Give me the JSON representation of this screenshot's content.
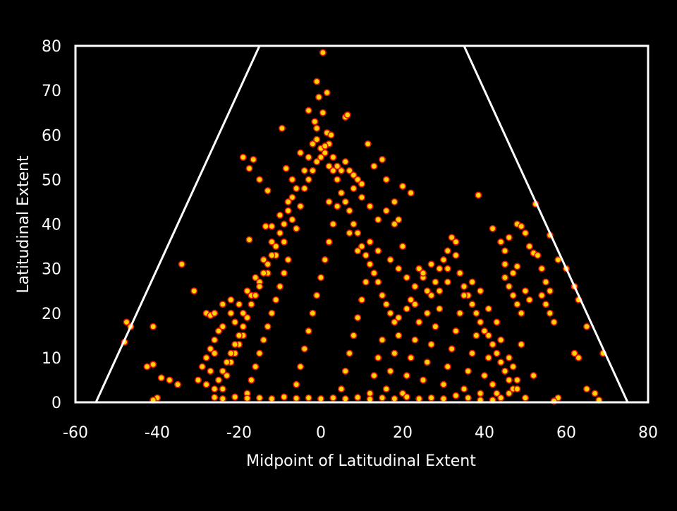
{
  "chart_data": {
    "type": "scatter",
    "title": "",
    "xlabel": "Midpoint of Latitudinal Extent",
    "ylabel": "Latitudinal Extent",
    "xlim": [
      -60,
      80
    ],
    "ylim": [
      0,
      80
    ],
    "xticks": [
      -60,
      -40,
      -20,
      0,
      20,
      40,
      60,
      80
    ],
    "yticks": [
      0,
      10,
      20,
      30,
      40,
      50,
      60,
      70,
      80
    ],
    "grid": false,
    "legend": "none",
    "colors": {
      "background": "#000000",
      "axis": "#ffffff",
      "marker_fill": "#ffd400",
      "marker_edge": "#e0140a",
      "dense_core": "#e8120c"
    },
    "boundary_lines": [
      {
        "x": [
          -55,
          -15
        ],
        "y": [
          0,
          80
        ]
      },
      {
        "x": [
          35,
          75
        ],
        "y": [
          80,
          0
        ]
      }
    ],
    "points": [
      [
        0.5,
        78.5
      ],
      [
        -1,
        72
      ],
      [
        1.5,
        69.5
      ],
      [
        -0.5,
        68.5
      ],
      [
        0.5,
        65
      ],
      [
        -3,
        65.5
      ],
      [
        -1.5,
        63
      ],
      [
        -1,
        61.5
      ],
      [
        1.5,
        60.5
      ],
      [
        2.5,
        60
      ],
      [
        6,
        64
      ],
      [
        6.5,
        64.5
      ],
      [
        -9.5,
        61.5
      ],
      [
        -19,
        55
      ],
      [
        -16.5,
        54.5
      ],
      [
        -17.5,
        52.5
      ],
      [
        -15,
        50
      ],
      [
        -13,
        47.5
      ],
      [
        -8.5,
        52.5
      ],
      [
        11.5,
        58
      ],
      [
        13,
        53
      ],
      [
        15,
        54.5
      ],
      [
        16,
        50
      ],
      [
        20,
        48.5
      ],
      [
        22,
        47
      ],
      [
        38.5,
        46.5
      ],
      [
        52.5,
        44.5
      ],
      [
        -34,
        31
      ],
      [
        -17.5,
        36.5
      ],
      [
        -13.5,
        39.5
      ],
      [
        -12,
        39.5
      ],
      [
        -31,
        25
      ],
      [
        -28,
        20
      ],
      [
        -27,
        19.5
      ],
      [
        -47.5,
        18
      ],
      [
        -46.5,
        17
      ],
      [
        -41,
        17
      ],
      [
        -48,
        13.5
      ],
      [
        -41,
        8.5
      ],
      [
        -42.5,
        8
      ],
      [
        -39,
        5.5
      ],
      [
        -37,
        5
      ],
      [
        -35,
        4
      ],
      [
        -40,
        1
      ],
      [
        -41,
        0.5
      ],
      [
        -26,
        20
      ],
      [
        -24,
        22
      ],
      [
        -22,
        23
      ],
      [
        -21,
        18
      ],
      [
        -19,
        20
      ],
      [
        -17,
        24
      ],
      [
        -15,
        27
      ],
      [
        -13,
        29
      ],
      [
        -11,
        33
      ],
      [
        -9,
        36
      ],
      [
        -7,
        41
      ],
      [
        -5,
        44
      ],
      [
        -4,
        48
      ],
      [
        -3,
        50
      ],
      [
        -2,
        52
      ],
      [
        -1,
        54
      ],
      [
        0,
        55
      ],
      [
        1,
        56
      ],
      [
        2,
        53
      ],
      [
        3,
        52
      ],
      [
        4,
        50
      ],
      [
        5,
        47
      ],
      [
        6,
        45
      ],
      [
        7,
        43
      ],
      [
        8,
        40
      ],
      [
        9,
        38
      ],
      [
        10,
        35
      ],
      [
        11,
        33
      ],
      [
        12,
        31
      ],
      [
        13,
        29
      ],
      [
        14,
        27
      ],
      [
        15,
        24
      ],
      [
        16,
        22
      ],
      [
        17,
        20
      ],
      [
        18,
        18
      ],
      [
        19,
        19
      ],
      [
        21,
        21
      ],
      [
        22,
        23
      ],
      [
        23,
        26
      ],
      [
        24,
        30
      ],
      [
        25,
        28
      ],
      [
        26,
        25
      ],
      [
        27,
        24
      ],
      [
        28,
        27
      ],
      [
        29,
        30
      ],
      [
        30,
        32
      ],
      [
        31,
        34
      ],
      [
        32,
        37
      ],
      [
        33,
        33
      ],
      [
        34,
        29
      ],
      [
        35,
        26
      ],
      [
        36,
        24
      ],
      [
        37,
        22
      ],
      [
        38,
        20
      ],
      [
        39,
        18
      ],
      [
        40,
        16
      ],
      [
        41,
        15
      ],
      [
        42,
        13
      ],
      [
        43,
        11
      ],
      [
        44,
        9
      ],
      [
        45,
        7
      ],
      [
        46,
        5
      ],
      [
        47,
        3
      ],
      [
        42,
        39
      ],
      [
        44,
        36
      ],
      [
        45,
        34
      ],
      [
        46,
        37
      ],
      [
        48,
        40
      ],
      [
        49,
        39.5
      ],
      [
        50,
        38
      ],
      [
        51,
        35
      ],
      [
        52,
        33.5
      ],
      [
        53,
        33
      ],
      [
        54,
        30
      ],
      [
        55,
        27
      ],
      [
        56,
        25
      ],
      [
        54,
        24
      ],
      [
        55,
        22
      ],
      [
        56,
        20
      ],
      [
        57,
        18
      ],
      [
        56,
        37.5
      ],
      [
        58,
        32
      ],
      [
        60,
        30
      ],
      [
        62,
        26
      ],
      [
        63,
        23
      ],
      [
        65,
        17
      ],
      [
        62,
        11
      ],
      [
        63,
        10
      ],
      [
        69,
        11
      ],
      [
        65,
        3
      ],
      [
        67,
        2
      ],
      [
        68,
        0.5
      ],
      [
        45,
        28
      ],
      [
        46,
        26
      ],
      [
        47,
        24
      ],
      [
        48,
        22
      ],
      [
        49,
        20
      ],
      [
        45,
        31
      ],
      [
        47,
        29
      ],
      [
        48,
        30.5
      ],
      [
        50,
        25
      ],
      [
        51,
        23
      ],
      [
        49,
        13
      ],
      [
        52,
        6
      ],
      [
        48,
        3
      ],
      [
        50,
        1
      ],
      [
        58,
        1
      ],
      [
        57,
        0.3
      ],
      [
        -30,
        5
      ],
      [
        -29,
        8
      ],
      [
        -28,
        10
      ],
      [
        -27,
        12
      ],
      [
        -26,
        14
      ],
      [
        -25,
        16
      ],
      [
        -24,
        3
      ],
      [
        -23,
        6
      ],
      [
        -22,
        9
      ],
      [
        -21,
        11
      ],
      [
        -20,
        13
      ],
      [
        -19,
        15
      ],
      [
        -18,
        2
      ],
      [
        -17,
        5
      ],
      [
        -16,
        8
      ],
      [
        -15,
        11
      ],
      [
        -14,
        14
      ],
      [
        -13,
        17
      ],
      [
        -12,
        20
      ],
      [
        -11,
        23
      ],
      [
        -10,
        26
      ],
      [
        -9,
        29
      ],
      [
        -8,
        32
      ],
      [
        -6,
        4
      ],
      [
        -5,
        8
      ],
      [
        -4,
        12
      ],
      [
        -3,
        16
      ],
      [
        -2,
        20
      ],
      [
        -1,
        24
      ],
      [
        0,
        28
      ],
      [
        1,
        32
      ],
      [
        2,
        36
      ],
      [
        3,
        40
      ],
      [
        4,
        44
      ],
      [
        5,
        3
      ],
      [
        6,
        7
      ],
      [
        7,
        11
      ],
      [
        8,
        15
      ],
      [
        9,
        19
      ],
      [
        10,
        23
      ],
      [
        11,
        27
      ],
      [
        12,
        2
      ],
      [
        13,
        6
      ],
      [
        14,
        10
      ],
      [
        15,
        14
      ],
      [
        16,
        3
      ],
      [
        17,
        7
      ],
      [
        18,
        11
      ],
      [
        19,
        15
      ],
      [
        20,
        2
      ],
      [
        21,
        6
      ],
      [
        22,
        10
      ],
      [
        23,
        14
      ],
      [
        24,
        18
      ],
      [
        25,
        5
      ],
      [
        26,
        9
      ],
      [
        27,
        13
      ],
      [
        28,
        17
      ],
      [
        29,
        21
      ],
      [
        30,
        4
      ],
      [
        31,
        8
      ],
      [
        32,
        12
      ],
      [
        33,
        16
      ],
      [
        34,
        20
      ],
      [
        35,
        3
      ],
      [
        36,
        7
      ],
      [
        37,
        11
      ],
      [
        38,
        15
      ],
      [
        39,
        2
      ],
      [
        40,
        6
      ],
      [
        41,
        10
      ],
      [
        42,
        4
      ],
      [
        43,
        2
      ],
      [
        -6,
        39
      ],
      [
        -8,
        45
      ],
      [
        -10,
        42
      ],
      [
        -7,
        50
      ],
      [
        -5,
        56
      ],
      [
        2,
        45
      ],
      [
        5,
        52
      ],
      [
        8,
        48
      ],
      [
        10,
        46
      ],
      [
        12,
        44
      ],
      [
        14,
        41
      ],
      [
        16,
        43
      ],
      [
        18,
        45
      ],
      [
        7,
        38
      ],
      [
        9,
        34
      ],
      [
        12,
        36
      ],
      [
        14,
        34
      ],
      [
        17,
        32
      ],
      [
        19,
        30
      ],
      [
        21,
        28
      ],
      [
        20,
        35
      ],
      [
        19,
        41
      ],
      [
        18,
        40
      ],
      [
        -12,
        36
      ],
      [
        -14,
        32
      ],
      [
        -16,
        28
      ],
      [
        -18,
        25
      ],
      [
        -20,
        22
      ],
      [
        -22,
        20
      ],
      [
        -24,
        17
      ],
      [
        -26,
        11
      ],
      [
        -27,
        7
      ],
      [
        -28,
        4
      ],
      [
        33,
        36
      ],
      [
        31,
        30
      ],
      [
        27,
        31
      ],
      [
        25,
        29
      ],
      [
        23,
        22
      ],
      [
        26,
        20
      ],
      [
        29,
        25
      ],
      [
        31,
        27
      ],
      [
        35,
        24
      ],
      [
        37,
        27
      ],
      [
        39,
        25
      ],
      [
        41,
        21
      ],
      [
        43,
        18
      ],
      [
        44,
        14
      ],
      [
        46,
        10
      ],
      [
        47,
        8
      ],
      [
        48,
        5
      ],
      [
        46,
        2
      ],
      [
        44,
        1
      ],
      [
        42,
        0.5
      ],
      [
        39,
        0.5
      ],
      [
        36,
        1
      ],
      [
        33,
        1.5
      ],
      [
        30,
        0.8
      ],
      [
        27,
        1
      ],
      [
        24,
        0.8
      ],
      [
        21,
        1.2
      ],
      [
        18,
        0.8
      ],
      [
        15,
        1
      ],
      [
        12,
        0.7
      ],
      [
        9,
        1.1
      ],
      [
        6,
        0.8
      ],
      [
        3,
        1
      ],
      [
        0,
        0.8
      ],
      [
        -3,
        1
      ],
      [
        -6,
        0.9
      ],
      [
        -9,
        1.2
      ],
      [
        -12,
        0.8
      ],
      [
        -15,
        1
      ],
      [
        -18,
        0.9
      ],
      [
        -21,
        1.2
      ],
      [
        -24,
        0.8
      ],
      [
        -26,
        1.1
      ],
      [
        -2,
        58
      ],
      [
        0,
        57
      ],
      [
        2,
        58
      ],
      [
        -1,
        59
      ],
      [
        1,
        57.5
      ],
      [
        -3,
        55
      ],
      [
        3,
        55
      ],
      [
        4,
        53
      ],
      [
        -4,
        52
      ],
      [
        6,
        54
      ],
      [
        7,
        52
      ],
      [
        8,
        51
      ],
      [
        9,
        50
      ],
      [
        10,
        49
      ],
      [
        -6,
        48
      ],
      [
        -7,
        46
      ],
      [
        -8,
        43
      ],
      [
        -9,
        40
      ],
      [
        -10,
        38
      ],
      [
        -11,
        35
      ],
      [
        -12,
        33
      ],
      [
        -13,
        31
      ],
      [
        -14,
        29
      ],
      [
        -15,
        26
      ],
      [
        -16,
        24
      ],
      [
        -17,
        22
      ],
      [
        -18,
        19
      ],
      [
        -19,
        17
      ],
      [
        -20,
        15
      ],
      [
        -21,
        13
      ],
      [
        -22,
        11
      ],
      [
        -23,
        9
      ],
      [
        -24,
        7
      ],
      [
        -25,
        5
      ],
      [
        -26,
        3
      ]
    ]
  }
}
